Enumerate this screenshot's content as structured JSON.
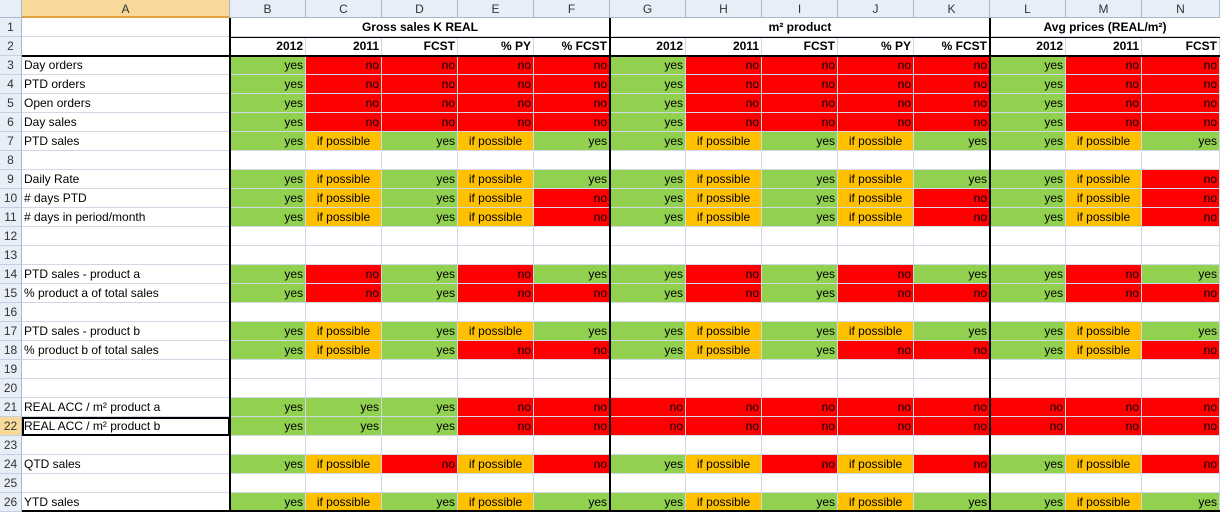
{
  "columns": [
    "A",
    "B",
    "C",
    "D",
    "E",
    "F",
    "G",
    "H",
    "I",
    "J",
    "K",
    "L",
    "M",
    "N"
  ],
  "active_cell": {
    "row": 22,
    "col": "A"
  },
  "groups": [
    {
      "label": "Gross sales K REAL"
    },
    {
      "label": "m² product"
    },
    {
      "label": "Avg prices (REAL/m²)"
    }
  ],
  "subheaders": [
    "2012",
    "2011",
    "FCST",
    "% PY",
    "% FCST",
    "2012",
    "2011",
    "FCST",
    "% PY",
    "% FCST",
    "2012",
    "2011",
    "FCST"
  ],
  "colors": {
    "green": "#92d050",
    "red": "#ff0000",
    "orange": "#ffc000"
  },
  "rows": [
    {
      "num": 3,
      "label": "Day orders",
      "cells": [
        "yes",
        "no",
        "no",
        "no",
        "no",
        "yes",
        "no",
        "no",
        "no",
        "no",
        "yes",
        "no",
        "no"
      ]
    },
    {
      "num": 4,
      "label": "PTD orders",
      "cells": [
        "yes",
        "no",
        "no",
        "no",
        "no",
        "yes",
        "no",
        "no",
        "no",
        "no",
        "yes",
        "no",
        "no"
      ]
    },
    {
      "num": 5,
      "label": "Open orders",
      "cells": [
        "yes",
        "no",
        "no",
        "no",
        "no",
        "yes",
        "no",
        "no",
        "no",
        "no",
        "yes",
        "no",
        "no"
      ]
    },
    {
      "num": 6,
      "label": "Day sales",
      "cells": [
        "yes",
        "no",
        "no",
        "no",
        "no",
        "yes",
        "no",
        "no",
        "no",
        "no",
        "yes",
        "no",
        "no"
      ]
    },
    {
      "num": 7,
      "label": "PTD sales",
      "cells": [
        "yes",
        "if possible",
        "yes",
        "if possible",
        "yes",
        "yes",
        "if possible",
        "yes",
        "if possible",
        "yes",
        "yes",
        "if possible",
        "yes"
      ]
    },
    {
      "num": 8,
      "label": "",
      "cells": []
    },
    {
      "num": 9,
      "label": "Daily Rate",
      "cells": [
        "yes",
        "if possible",
        "yes",
        "if possible",
        "yes",
        "yes",
        "if possible",
        "yes",
        "if possible",
        "yes",
        "yes",
        "if possible",
        "no"
      ]
    },
    {
      "num": 10,
      "label": "# days PTD",
      "cells": [
        "yes",
        "if possible",
        "yes",
        "if possible",
        "no",
        "yes",
        "if possible",
        "yes",
        "if possible",
        "no",
        "yes",
        "if possible",
        "no"
      ]
    },
    {
      "num": 11,
      "label": "# days in period/month",
      "cells": [
        "yes",
        "if possible",
        "yes",
        "if possible",
        "no",
        "yes",
        "if possible",
        "yes",
        "if possible",
        "no",
        "yes",
        "if possible",
        "no"
      ]
    },
    {
      "num": 12,
      "label": "",
      "cells": []
    },
    {
      "num": 13,
      "label": "",
      "cells": []
    },
    {
      "num": 14,
      "label": "PTD sales - product a",
      "cells": [
        "yes",
        "no",
        "yes",
        "no",
        "yes",
        "yes",
        "no",
        "yes",
        "no",
        "yes",
        "yes",
        "no",
        "yes"
      ]
    },
    {
      "num": 15,
      "label": "% product a of total sales",
      "cells": [
        "yes",
        "no",
        "yes",
        "no",
        "no",
        "yes",
        "no",
        "yes",
        "no",
        "no",
        "yes",
        "no",
        "no"
      ]
    },
    {
      "num": 16,
      "label": "",
      "cells": []
    },
    {
      "num": 17,
      "label": "PTD sales - product b",
      "cells": [
        "yes",
        "if possible",
        "yes",
        "if possible",
        "yes",
        "yes",
        "if possible",
        "yes",
        "if possible",
        "yes",
        "yes",
        "if possible",
        "yes"
      ]
    },
    {
      "num": 18,
      "label": "% product b of total sales",
      "cells": [
        "yes",
        "if possible",
        "yes",
        "no",
        "no",
        "yes",
        "if possible",
        "yes",
        "no",
        "no",
        "yes",
        "if possible",
        "no"
      ]
    },
    {
      "num": 19,
      "label": "",
      "cells": []
    },
    {
      "num": 20,
      "label": "",
      "cells": []
    },
    {
      "num": 21,
      "label": "REAL ACC / m² product a",
      "cells": [
        "yes",
        "yes",
        "yes",
        "no",
        "no",
        "no",
        "no",
        "no",
        "no",
        "no",
        "no",
        "no",
        "no"
      ]
    },
    {
      "num": 22,
      "label": "REAL ACC / m² product b",
      "cells": [
        "yes",
        "yes",
        "yes",
        "no",
        "no",
        "no",
        "no",
        "no",
        "no",
        "no",
        "no",
        "no",
        "no"
      ]
    },
    {
      "num": 23,
      "label": "",
      "cells": []
    },
    {
      "num": 24,
      "label": "QTD sales",
      "cells": [
        "yes",
        "if possible",
        "no",
        "if possible",
        "no",
        "yes",
        "if possible",
        "no",
        "if possible",
        "no",
        "yes",
        "if possible",
        "no"
      ]
    },
    {
      "num": 25,
      "label": "",
      "cells": []
    },
    {
      "num": 26,
      "label": "YTD sales",
      "cells": [
        "yes",
        "if possible",
        "yes",
        "if possible",
        "yes",
        "yes",
        "if possible",
        "yes",
        "if possible",
        "yes",
        "yes",
        "if possible",
        "yes"
      ]
    }
  ]
}
